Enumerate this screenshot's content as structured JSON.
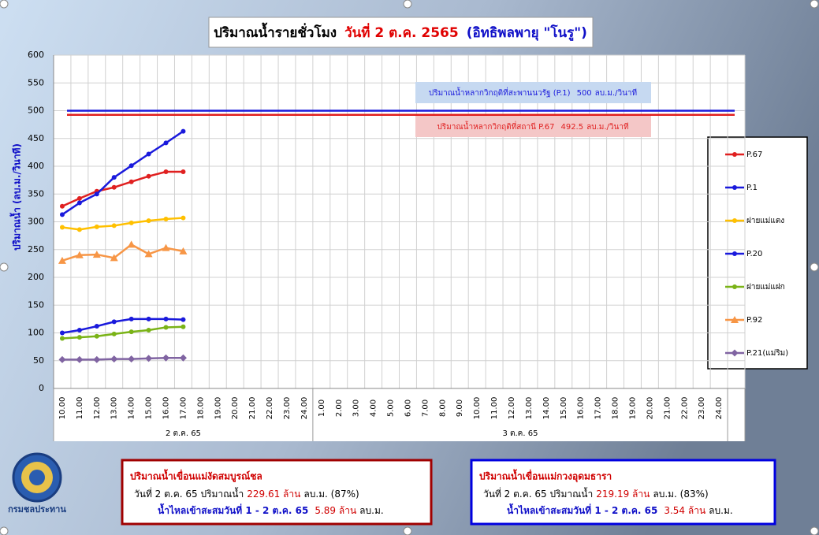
{
  "chart_data": {
    "type": "line",
    "title_parts": [
      {
        "text": "ปริมาณน้ำรายชั่วโมง",
        "color": "#000000"
      },
      {
        "text": "วันที่ 2 ต.ค. 2565",
        "color": "#e00000"
      },
      {
        "text": "(อิทธิพลพายุ \"โนรู\")",
        "color": "#1010c8"
      }
    ],
    "y_label": "ปริมาณน้ำ (ลบ.ม./วินาที)",
    "category_groups": [
      {
        "name": "2 ต.ค. 65",
        "categories": [
          "10.00",
          "11.00",
          "12.00",
          "13.00",
          "14.00",
          "15.00",
          "16.00",
          "17.00",
          "18.00",
          "19.00",
          "20.00",
          "21.00",
          "22.00",
          "23.00",
          "24.00"
        ]
      },
      {
        "name": "3 ต.ค. 65",
        "categories": [
          "1.00",
          "2.00",
          "3.00",
          "4.00",
          "5.00",
          "6.00",
          "7.00",
          "8.00",
          "9.00",
          "10.00",
          "11.00",
          "12.00",
          "13.00",
          "14.00",
          "15.00",
          "16.00",
          "17.00",
          "18.00",
          "19.00",
          "20.00",
          "21.00",
          "22.00",
          "23.00",
          "24.00"
        ]
      }
    ],
    "ylim": [
      0,
      600
    ],
    "yticks": [
      0,
      50,
      100,
      150,
      200,
      250,
      300,
      350,
      400,
      450,
      500,
      550,
      600
    ],
    "grid": true,
    "series": [
      {
        "name": "P.67",
        "color": "#e02020",
        "marker": "circle",
        "values": [
          328,
          342,
          355,
          362,
          372,
          382,
          390,
          390,
          null,
          null,
          null,
          null,
          null,
          null,
          null,
          null,
          null,
          null,
          null,
          null,
          null,
          null,
          null,
          null,
          null,
          null,
          null,
          null,
          null,
          null,
          null,
          null,
          null,
          null,
          null,
          null,
          null,
          null,
          null
        ]
      },
      {
        "name": "P.1",
        "color": "#1a1adc",
        "marker": "circle",
        "values": [
          313,
          334,
          350,
          380,
          401,
          422,
          442,
          463,
          null,
          null,
          null,
          null,
          null,
          null,
          null,
          null,
          null,
          null,
          null,
          null,
          null,
          null,
          null,
          null,
          null,
          null,
          null,
          null,
          null,
          null,
          null,
          null,
          null,
          null,
          null,
          null,
          null,
          null,
          null
        ]
      },
      {
        "name": "ฝายแม่แตง",
        "color": "#ffc000",
        "marker": "circle",
        "values": [
          290,
          286,
          291,
          293,
          298,
          302,
          305,
          307,
          null,
          null,
          null,
          null,
          null,
          null,
          null,
          null,
          null,
          null,
          null,
          null,
          null,
          null,
          null,
          null,
          null,
          null,
          null,
          null,
          null,
          null,
          null,
          null,
          null,
          null,
          null,
          null,
          null,
          null,
          null
        ]
      },
      {
        "name": "P.20",
        "color": "#1a1adc",
        "marker": "circle",
        "values": [
          100,
          105,
          112,
          120,
          125,
          125,
          125,
          124,
          null,
          null,
          null,
          null,
          null,
          null,
          null,
          null,
          null,
          null,
          null,
          null,
          null,
          null,
          null,
          null,
          null,
          null,
          null,
          null,
          null,
          null,
          null,
          null,
          null,
          null,
          null,
          null,
          null,
          null,
          null
        ]
      },
      {
        "name": "ฝายแม่แฝก",
        "color": "#7ab317",
        "marker": "circle",
        "values": [
          90,
          92,
          94,
          98,
          102,
          105,
          110,
          111,
          null,
          null,
          null,
          null,
          null,
          null,
          null,
          null,
          null,
          null,
          null,
          null,
          null,
          null,
          null,
          null,
          null,
          null,
          null,
          null,
          null,
          null,
          null,
          null,
          null,
          null,
          null,
          null,
          null,
          null,
          null
        ]
      },
      {
        "name": "P.92",
        "color": "#f79646",
        "marker": "triangle",
        "values": [
          230,
          240,
          241,
          235,
          259,
          242,
          253,
          247,
          null,
          null,
          null,
          null,
          null,
          null,
          null,
          null,
          null,
          null,
          null,
          null,
          null,
          null,
          null,
          null,
          null,
          null,
          null,
          null,
          null,
          null,
          null,
          null,
          null,
          null,
          null,
          null,
          null,
          null,
          null
        ]
      },
      {
        "name": "P.21(แม่ริม)",
        "color": "#8064a2",
        "marker": "diamond",
        "values": [
          52,
          52,
          52,
          53,
          53,
          54,
          55,
          55,
          null,
          null,
          null,
          null,
          null,
          null,
          null,
          null,
          null,
          null,
          null,
          null,
          null,
          null,
          null,
          null,
          null,
          null,
          null,
          null,
          null,
          null,
          null,
          null,
          null,
          null,
          null,
          null,
          null,
          null,
          null
        ]
      }
    ],
    "reference_lines": [
      {
        "label": "ปริมาณน้ำหลากวิกฤติที่สะพานนวรัฐ (P.1)",
        "value": 500,
        "unit": "ลบ.ม./วินาที",
        "color": "#1a1adc",
        "box_color": "#c6d9f1"
      },
      {
        "label": "ปริมาณน้ำหลากวิกฤติที่สถานี P.67",
        "value": 492.5,
        "unit": "ลบ.ม./วินาที",
        "color": "#e02020",
        "box_color": "#f4c7c7"
      }
    ]
  },
  "info_boxes": [
    {
      "title": "ปริมาณน้ำเขื่อนแม่งัดสมบูรณ์ชล",
      "border": "#a00000",
      "line1": {
        "prefix": "วันที่ 2 ต.ค. 65 ปริมาณน้ำ",
        "amount": "229.61 ล้าน",
        "suffix": "ลบ.ม. (87%)"
      },
      "line2": {
        "prefix": "น้ำไหลเข้าสะสมวันที่ 1 - 2 ต.ค. 65",
        "amount": "5.89 ล้าน",
        "suffix": "ลบ.ม."
      }
    },
    {
      "title": "ปริมาณน้ำเขื่อนแม่กวงอุดมธารา",
      "border": "#0000e0",
      "line1": {
        "prefix": "วันที่ 2 ต.ค. 65 ปริมาณน้ำ",
        "amount": "219.19 ล้าน",
        "suffix": "ลบ.ม. (83%)"
      },
      "line2": {
        "prefix": "น้ำไหลเข้าสะสมวันที่ 1 - 2 ต.ค. 65",
        "amount": "3.54 ล้าน",
        "suffix": "ลบ.ม."
      }
    }
  ],
  "logo_text": "กรมชลประทาน"
}
